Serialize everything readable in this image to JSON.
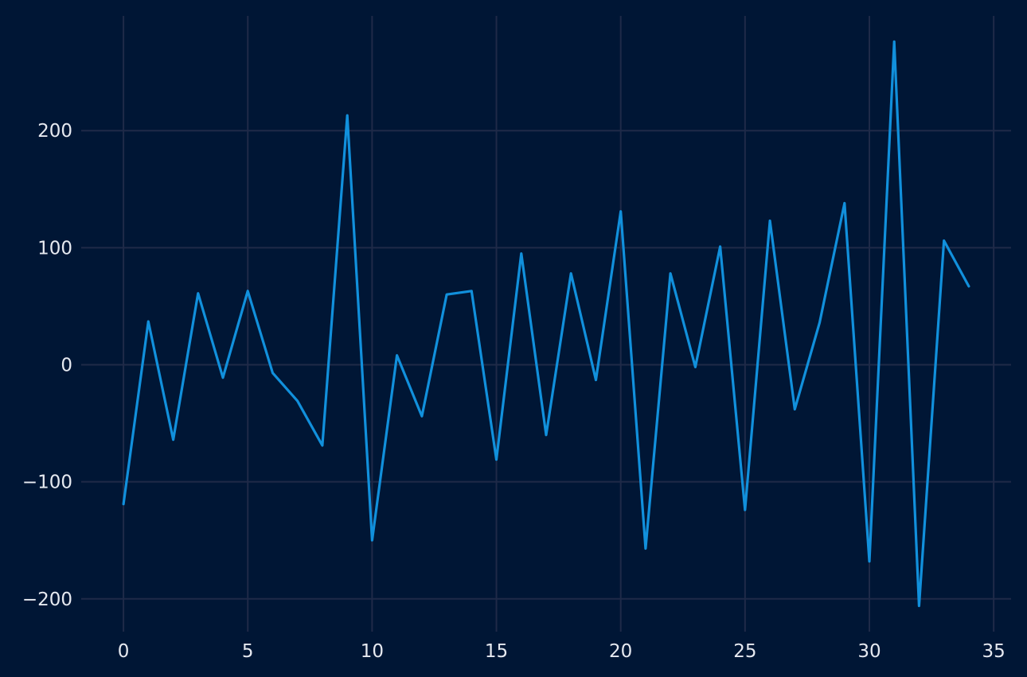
{
  "chart_data": {
    "type": "line",
    "title": "",
    "xlabel": "",
    "ylabel": "",
    "xlim": [
      -1.7,
      35.7
    ],
    "ylim": [
      -228,
      298
    ],
    "xticks": [
      0,
      5,
      10,
      15,
      20,
      25,
      30,
      35
    ],
    "yticks": [
      -200,
      -100,
      0,
      100,
      200
    ],
    "grid": true,
    "colors": {
      "background": "#001635",
      "grid": "#1f2a48",
      "text": "#e6e9f0",
      "line": "#1190dc"
    },
    "series": [
      {
        "color": "#1190dc",
        "x": [
          0,
          1,
          2,
          3,
          4,
          5,
          6,
          7,
          8,
          9,
          10,
          11,
          12,
          13,
          14,
          15,
          16,
          17,
          18,
          19,
          20,
          21,
          22,
          23,
          24,
          25,
          26,
          27,
          28,
          29,
          30,
          31,
          32,
          33,
          34
        ],
        "y": [
          -119,
          37,
          -64,
          61,
          -11,
          63,
          -7,
          -31,
          -69,
          213,
          -150,
          8,
          -44,
          60,
          63,
          -81,
          95,
          -60,
          78,
          -13,
          131,
          -157,
          78,
          -2,
          101,
          -124,
          123,
          -38,
          36,
          138,
          -168,
          276,
          -206,
          106,
          67
        ]
      }
    ]
  }
}
